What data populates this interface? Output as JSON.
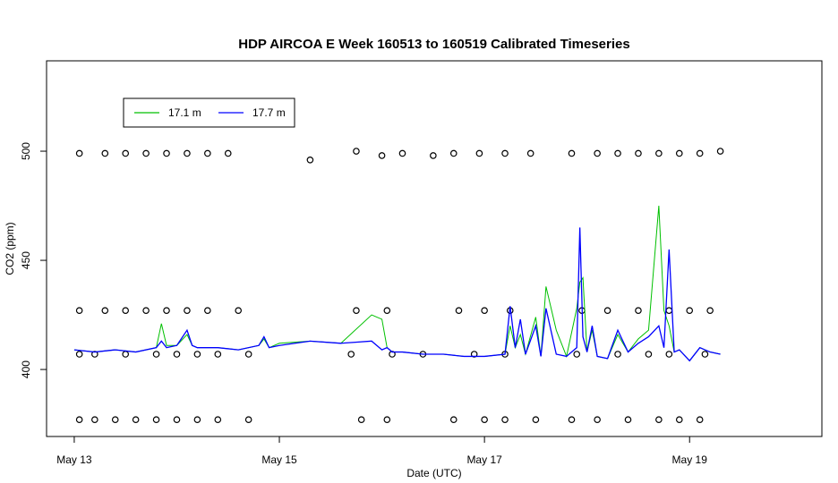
{
  "chart_data": {
    "type": "line",
    "title": "HDP AIRCOA E  Week 160513 to 160519  Calibrated Timeseries",
    "x_label": "Date (UTC)",
    "y_label": "CO2 (ppm)",
    "xlim": [
      12.73,
      20.29
    ],
    "ylim": [
      369.3,
      541.4
    ],
    "xticks": [
      {
        "value": 13,
        "label": "May 13"
      },
      {
        "value": 15,
        "label": "May 15"
      },
      {
        "value": 17,
        "label": "May 17"
      },
      {
        "value": 19,
        "label": "May 19"
      }
    ],
    "yticks": [
      400,
      450,
      500
    ],
    "x": [
      13.0,
      13.2,
      13.4,
      13.6,
      13.8,
      13.85,
      13.9,
      14.0,
      14.1,
      14.15,
      14.2,
      14.4,
      14.6,
      14.8,
      14.85,
      14.9,
      15.0,
      15.3,
      15.6,
      15.9,
      16.0,
      16.05,
      16.1,
      16.2,
      16.4,
      16.6,
      16.8,
      17.0,
      17.2,
      17.25,
      17.3,
      17.35,
      17.4,
      17.5,
      17.55,
      17.6,
      17.7,
      17.8,
      17.9,
      17.93,
      17.96,
      18.0,
      18.05,
      18.1,
      18.2,
      18.3,
      18.4,
      18.5,
      18.6,
      18.7,
      18.75,
      18.8,
      18.85,
      18.9,
      19.0,
      19.1,
      19.2,
      19.3
    ],
    "series": [
      {
        "name": "17.1 m",
        "color": "#00c000",
        "values": [
          409,
          408,
          409,
          408,
          410,
          421,
          411,
          411,
          416,
          411,
          410,
          410,
          409,
          411,
          414,
          410,
          412,
          413,
          412,
          425,
          423,
          410,
          408,
          408,
          407,
          407,
          406,
          406,
          407,
          420,
          410,
          416,
          407,
          424,
          406,
          438,
          418,
          406,
          428,
          440,
          442,
          408,
          418,
          406,
          405,
          416,
          408,
          414,
          418,
          475,
          427,
          420,
          408,
          409,
          404,
          410,
          408,
          407
        ]
      },
      {
        "name": "17.7 m",
        "color": "#0000ff",
        "values": [
          409,
          408,
          409,
          408,
          410,
          413,
          410,
          411,
          418,
          411,
          410,
          410,
          409,
          411,
          415,
          410,
          411,
          413,
          412,
          413,
          409,
          410,
          408,
          408,
          407,
          407,
          406,
          406,
          407,
          429,
          410,
          423,
          407,
          420,
          406,
          428,
          407,
          406,
          410,
          465,
          415,
          408,
          420,
          406,
          405,
          418,
          408,
          412,
          415,
          420,
          410,
          455,
          408,
          409,
          404,
          410,
          408,
          407
        ]
      }
    ],
    "scatter": {
      "color": "#000000",
      "x": [
        13.05,
        13.3,
        13.5,
        13.7,
        13.9,
        14.1,
        14.3,
        14.5,
        15.3,
        15.75,
        16.0,
        16.2,
        16.5,
        16.7,
        16.95,
        17.2,
        17.45,
        17.85,
        18.1,
        18.3,
        18.5,
        18.7,
        18.9,
        19.1,
        19.3,
        13.05,
        13.3,
        13.5,
        13.7,
        13.9,
        14.1,
        14.3,
        14.6,
        15.75,
        16.05,
        16.75,
        17.0,
        17.25,
        17.95,
        18.2,
        18.5,
        18.8,
        19.0,
        19.2,
        13.05,
        13.2,
        13.5,
        13.8,
        14.0,
        14.2,
        14.4,
        14.7,
        15.7,
        16.1,
        16.4,
        16.9,
        17.2,
        17.9,
        18.3,
        18.6,
        18.8,
        19.15,
        13.05,
        13.2,
        13.4,
        13.6,
        13.8,
        14.0,
        14.2,
        14.4,
        14.7,
        15.8,
        16.05,
        16.7,
        17.0,
        17.2,
        17.5,
        17.85,
        18.1,
        18.4,
        18.7,
        18.9,
        19.1
      ],
      "y": [
        499,
        499,
        499,
        499,
        499,
        499,
        499,
        499,
        496,
        500,
        498,
        499,
        498,
        499,
        499,
        499,
        499,
        499,
        499,
        499,
        499,
        499,
        499,
        499,
        500,
        427,
        427,
        427,
        427,
        427,
        427,
        427,
        427,
        427,
        427,
        427,
        427,
        427,
        427,
        427,
        427,
        427,
        427,
        427,
        407,
        407,
        407,
        407,
        407,
        407,
        407,
        407,
        407,
        407,
        407,
        407,
        407,
        407,
        407,
        407,
        407,
        407,
        377,
        377,
        377,
        377,
        377,
        377,
        377,
        377,
        377,
        377,
        377,
        377,
        377,
        377,
        377,
        377,
        377,
        377,
        377,
        377,
        377
      ]
    },
    "legend": "top-left"
  }
}
